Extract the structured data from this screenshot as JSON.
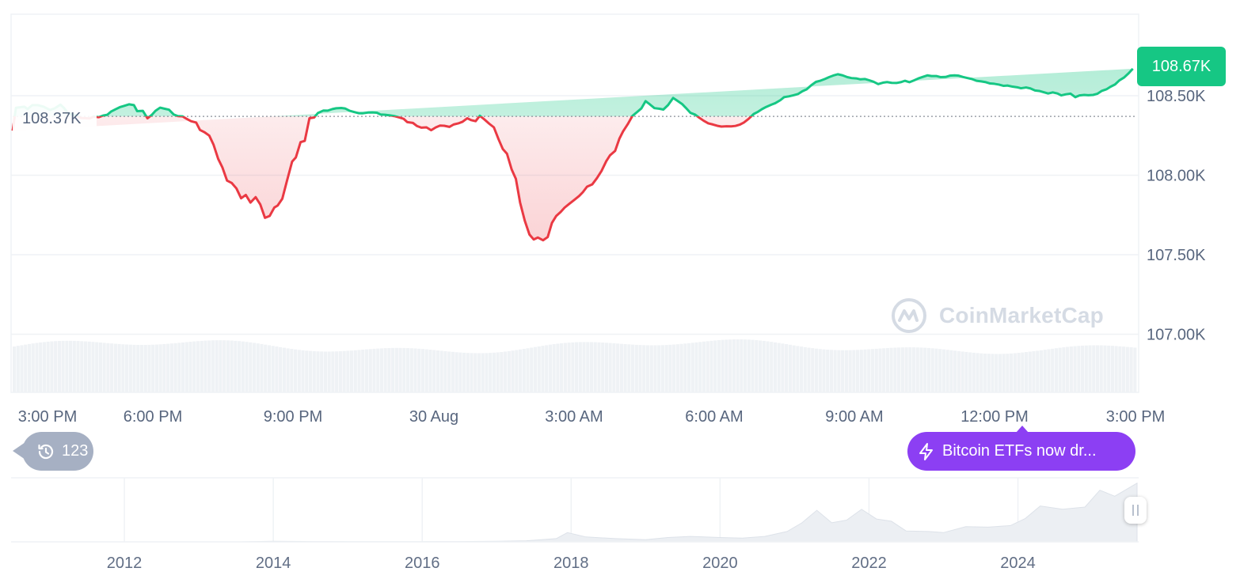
{
  "chart_data": [
    {
      "type": "area",
      "subtype": "baseline-line-with-volume",
      "y_axis_ticks": [
        "108.50K",
        "108.00K",
        "107.50K",
        "107.00K"
      ],
      "x_axis_ticks": [
        "3:00 PM",
        "6:00 PM",
        "9:00 PM",
        "30 Aug",
        "3:00 AM",
        "6:00 AM",
        "9:00 AM",
        "12:00 PM",
        "3:00 PM"
      ],
      "ylim": [
        107000,
        108500
      ],
      "baseline": {
        "value": 108370,
        "label": "108.37K"
      },
      "current_price": {
        "value": 108670,
        "label": "108.67K"
      },
      "colors": {
        "above": "#16c784",
        "below": "#ea3943",
        "above_fill": "#16c784",
        "below_fill": "#ea3943",
        "volume": "#eff2f5"
      },
      "x_hours": [
        0,
        0.07,
        0.25,
        0.32,
        0.42,
        0.53,
        0.66,
        0.8,
        0.9,
        1.02,
        1.1,
        1.17,
        1.27,
        1.37,
        1.46,
        1.56,
        1.64,
        1.73,
        1.84,
        1.93,
        2.02,
        2.1,
        2.2,
        2.29,
        2.39,
        2.49,
        2.59,
        2.66,
        2.78,
        2.88,
        2.97,
        3.05,
        3.15,
        3.25,
        3.34,
        3.44,
        3.53,
        3.63,
        3.72,
        3.81,
        3.92,
        4,
        4.1,
        4.2,
        4.29,
        4.39,
        4.48,
        4.58,
        4.68,
        4.78,
        4.88,
        4.98,
        5.08,
        5.19,
        5.29,
        5.39,
        5.49,
        5.59,
        5.66,
        5.76,
        5.86,
        5.97,
        6.05,
        6.15,
        6.24,
        6.34,
        6.44,
        6.52,
        6.64,
        6.73,
        6.83,
        6.91,
        7.02,
        7.1,
        7.2,
        7.3,
        7.39,
        7.47,
        7.59,
        7.68,
        7.78,
        7.86,
        7.96,
        8.06,
        8.15,
        8.25,
        8.35,
        8.43,
        8.55,
        8.64,
        8.73,
        8.84,
        8.94,
        9.04,
        9.13,
        9.22,
        9.33,
        9.42,
        9.52,
        9.61,
        9.71,
        9.8,
        9.89,
        9.98,
        10.08,
        10.18,
        10.28,
        10.38,
        10.47,
        10.56,
        10.66,
        10.75,
        10.84,
        10.94,
        11.04,
        11.13,
        11.22,
        11.33,
        11.43,
        11.52,
        11.61,
        11.71,
        11.79,
        11.89,
        11.99,
        12.1,
        12.18,
        12.27,
        12.38,
        12.48,
        12.58,
        12.68,
        12.76,
        12.87,
        12.96,
        13.04,
        13.14,
        13.24,
        13.33,
        13.43,
        13.52,
        13.61,
        13.71,
        13.82,
        13.9,
        14,
        14.11,
        14.19,
        14.3,
        14.38,
        14.48,
        14.58,
        14.67,
        14.76,
        14.86,
        14.96,
        15.05,
        15.14,
        15.25,
        15.35,
        15.44,
        15.54,
        15.62,
        15.72,
        15.83,
        15.91,
        16.01,
        16.1,
        16.21,
        16.29,
        16.4,
        16.48,
        16.58,
        16.68,
        16.78,
        16.87,
        16.96,
        17.06,
        17.16,
        17.26,
        17.35,
        17.44,
        17.53,
        17.63,
        17.73,
        17.83,
        17.92,
        18.02,
        18.11,
        18.21,
        18.3,
        18.39,
        18.49,
        18.59,
        18.68,
        18.78,
        18.88,
        18.97,
        19.06,
        19.16,
        19.25,
        19.35,
        19.45,
        19.54,
        19.63,
        19.73,
        19.82,
        19.93,
        20.02,
        20.12,
        20.21,
        20.3,
        20.4,
        20.49,
        20.59,
        20.69,
        20.79,
        20.88,
        20.97,
        21.07,
        21.17,
        21.25,
        21.36,
        21.46,
        21.54,
        21.65,
        21.74,
        21.84,
        21.93,
        22.04,
        22.12,
        22.22,
        22.32,
        22.4,
        22.5,
        22.6,
        22.7,
        22.79,
        22.89,
        22.98,
        23.08,
        23.17,
        23.27,
        23.37,
        23.45,
        23.55,
        23.64,
        23.74,
        23.84,
        23.93,
        24.02
      ],
      "price": [
        108280,
        108424,
        108431,
        108416,
        108441,
        108441,
        108431,
        108410,
        108421,
        108444,
        108422,
        108394,
        108382,
        108375,
        108360,
        108359,
        108357,
        108369,
        108365,
        108375,
        108380,
        108400,
        108415,
        108428,
        108437,
        108446,
        108441,
        108403,
        108405,
        108358,
        108379,
        108405,
        108425,
        108418,
        108412,
        108382,
        108372,
        108370,
        108354,
        108340,
        108331,
        108285,
        108270,
        108249,
        108193,
        108103,
        108049,
        107966,
        107951,
        107917,
        107855,
        107876,
        107828,
        107862,
        107816,
        107732,
        107744,
        107797,
        107809,
        107852,
        107965,
        108086,
        108112,
        108208,
        108216,
        108358,
        108363,
        108391,
        108407,
        108406,
        108416,
        108421,
        108423,
        108420,
        108405,
        108397,
        108390,
        108389,
        108394,
        108395,
        108393,
        108382,
        108380,
        108376,
        108372,
        108364,
        108355,
        108334,
        108329,
        108309,
        108299,
        108301,
        108283,
        108301,
        108312,
        108311,
        108304,
        108319,
        108326,
        108336,
        108358,
        108346,
        108340,
        108374,
        108350,
        108324,
        108301,
        108226,
        108165,
        108135,
        108036,
        107977,
        107828,
        107714,
        107627,
        107596,
        107608,
        107591,
        107611,
        107700,
        107743,
        107770,
        107796,
        107820,
        107843,
        107869,
        107893,
        107928,
        107942,
        107981,
        108027,
        108088,
        108125,
        108153,
        108229,
        108276,
        108321,
        108373,
        108395,
        108420,
        108466,
        108446,
        108422,
        108418,
        108413,
        108441,
        108486,
        108470,
        108448,
        108424,
        108392,
        108381,
        108361,
        108343,
        108326,
        108319,
        108311,
        108306,
        108308,
        108307,
        108310,
        108319,
        108331,
        108354,
        108385,
        108397,
        108416,
        108430,
        108444,
        108453,
        108472,
        108491,
        108496,
        108503,
        108511,
        108528,
        108540,
        108566,
        108587,
        108595,
        108605,
        108617,
        108627,
        108635,
        108628,
        108617,
        108611,
        108609,
        108603,
        108605,
        108597,
        108588,
        108573,
        108582,
        108586,
        108581,
        108580,
        108585,
        108594,
        108585,
        108596,
        108609,
        108619,
        108628,
        108624,
        108624,
        108617,
        108618,
        108626,
        108628,
        108626,
        108618,
        108611,
        108605,
        108594,
        108590,
        108585,
        108577,
        108575,
        108570,
        108562,
        108564,
        108557,
        108553,
        108547,
        108552,
        108546,
        108533,
        108530,
        108521,
        108514,
        108521,
        108514,
        108502,
        108509,
        108513,
        108491,
        108502,
        108505,
        108503,
        108505,
        108512,
        108531,
        108541,
        108556,
        108571,
        108596,
        108614,
        108641,
        108670
      ],
      "volume_note": "volume bars shown without scale"
    },
    {
      "type": "area",
      "subtype": "range-navigator",
      "x_axis_ticks": [
        "2012",
        "2014",
        "2016",
        "2018",
        "2020",
        "2022",
        "2024"
      ],
      "x_years": [
        2010.5,
        2011.0,
        2011.5,
        2012.0,
        2012.5,
        2013.0,
        2013.5,
        2014.0,
        2014.5,
        2015.0,
        2015.5,
        2016.0,
        2016.5,
        2017.0,
        2017.4,
        2017.8,
        2017.95,
        2018.2,
        2018.6,
        2019.0,
        2019.3,
        2019.6,
        2020.0,
        2020.3,
        2020.6,
        2020.9,
        2021.1,
        2021.3,
        2021.5,
        2021.7,
        2021.9,
        2022.1,
        2022.3,
        2022.5,
        2022.8,
        2023.0,
        2023.3,
        2023.6,
        2023.9,
        2024.1,
        2024.3,
        2024.6,
        2024.9,
        2025.1,
        2025.3,
        2025.6
      ],
      "price_k": [
        0,
        0,
        0,
        0,
        0,
        0,
        0,
        1,
        0.6,
        0.3,
        0.3,
        0.4,
        0.6,
        1,
        2,
        6,
        17,
        9,
        6,
        4,
        8,
        10,
        8,
        7,
        10,
        19,
        35,
        58,
        35,
        40,
        60,
        42,
        38,
        20,
        19,
        17,
        28,
        27,
        30,
        43,
        66,
        60,
        64,
        95,
        84,
        108
      ]
    }
  ],
  "labels": {
    "price_tag": "108.67K",
    "ref_tag": "108.37K",
    "history_count": "123",
    "news_text": "Bitcoin ETFs now dr...",
    "watermark": "CoinMarketCap"
  },
  "icons": {
    "history": "history-clock-icon",
    "news": "lightning-bolt-icon",
    "watermark_logo": "coinmarketcap-logo-icon",
    "handle": "range-handle-grip-icon"
  }
}
